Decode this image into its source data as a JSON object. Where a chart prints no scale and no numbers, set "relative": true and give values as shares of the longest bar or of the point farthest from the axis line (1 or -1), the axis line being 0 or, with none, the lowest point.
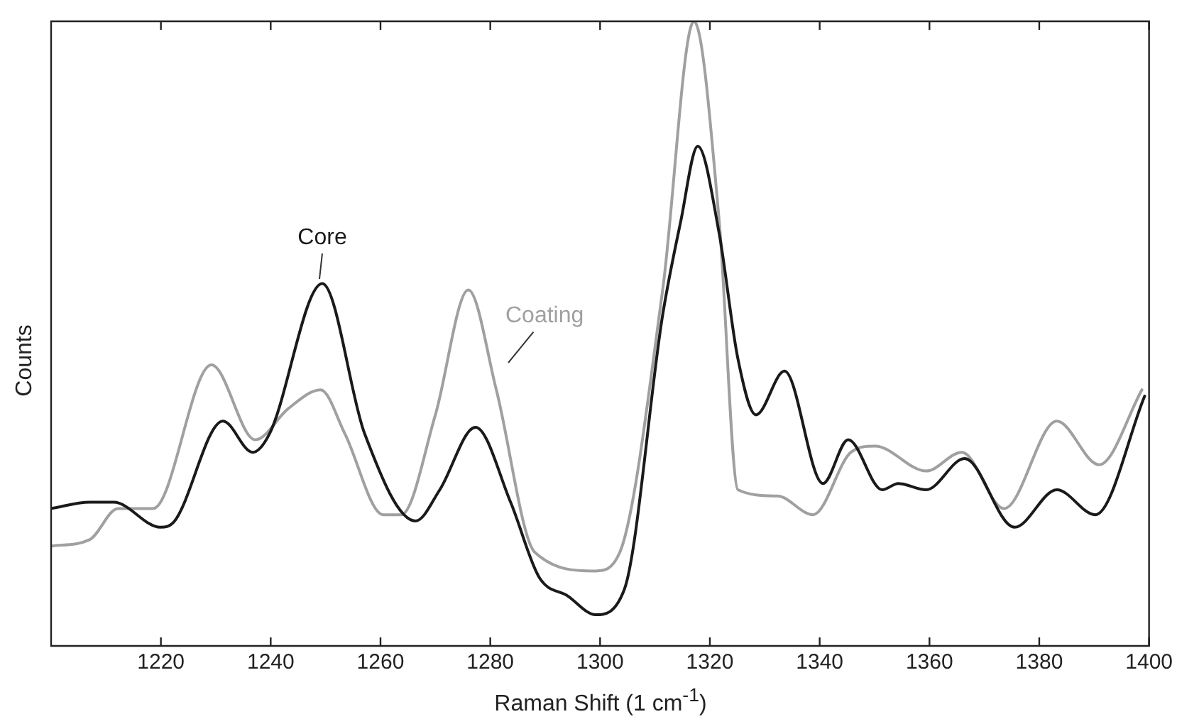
{
  "chart_data": {
    "type": "line",
    "xlabel": "Raman Shift (1 cm$^{-1}$)",
    "ylabel": "Counts",
    "relative": true,
    "xlim": [
      1200,
      1400
    ],
    "xticks": [
      1220,
      1240,
      1260,
      1280,
      1300,
      1320,
      1340,
      1360,
      1380,
      1400
    ],
    "grid": false,
    "legend": false,
    "marker": "none",
    "line_style": "solid",
    "series": [
      {
        "name": "Core",
        "color": "#1a1a1a",
        "x": [
          1200,
          1207,
          1211.4,
          1219.9,
          1222.5,
          1231.3,
          1236.7,
          1239.8,
          1249.4,
          1257.1,
          1266.4,
          1270.8,
          1277.3,
          1283.7,
          1288.9,
          1294.1,
          1299.2,
          1304.4,
          1311.4,
          1314.7,
          1317.8,
          1321.7,
          1325.1,
          1328.4,
          1333.6,
          1340.6,
          1345.2,
          1351.4,
          1354.3,
          1359.4,
          1366.4,
          1375.5,
          1383.2,
          1390.2,
          1399.2
        ],
        "values": [
          0.22,
          0.23,
          0.23,
          0.19,
          0.2,
          0.36,
          0.31,
          0.34,
          0.58,
          0.34,
          0.2,
          0.25,
          0.35,
          0.23,
          0.11,
          0.08,
          0.05,
          0.09,
          0.53,
          0.68,
          0.8,
          0.66,
          0.46,
          0.37,
          0.44,
          0.26,
          0.33,
          0.25,
          0.26,
          0.25,
          0.3,
          0.19,
          0.25,
          0.21,
          0.4
        ]
      },
      {
        "name": "Coating",
        "color": "#a0a0a0",
        "x": [
          1200,
          1207,
          1212.2,
          1218.6,
          1229.2,
          1237.2,
          1243.2,
          1249.1,
          1253.5,
          1260.5,
          1263.8,
          1270,
          1276,
          1281.1,
          1288.1,
          1299.2,
          1303.6,
          1311.4,
          1317.1,
          1321.7,
          1325.1,
          1332.3,
          1338.8,
          1345.7,
          1350.1,
          1359.4,
          1365.9,
          1373.6,
          1383.2,
          1390.9,
          1398.7
        ],
        "values": [
          0.16,
          0.17,
          0.22,
          0.22,
          0.45,
          0.33,
          0.38,
          0.41,
          0.34,
          0.21,
          0.21,
          0.37,
          0.57,
          0.41,
          0.15,
          0.12,
          0.15,
          0.57,
          1,
          0.68,
          0.25,
          0.24,
          0.21,
          0.31,
          0.32,
          0.28,
          0.31,
          0.22,
          0.36,
          0.29,
          0.41
        ]
      }
    ]
  }
}
